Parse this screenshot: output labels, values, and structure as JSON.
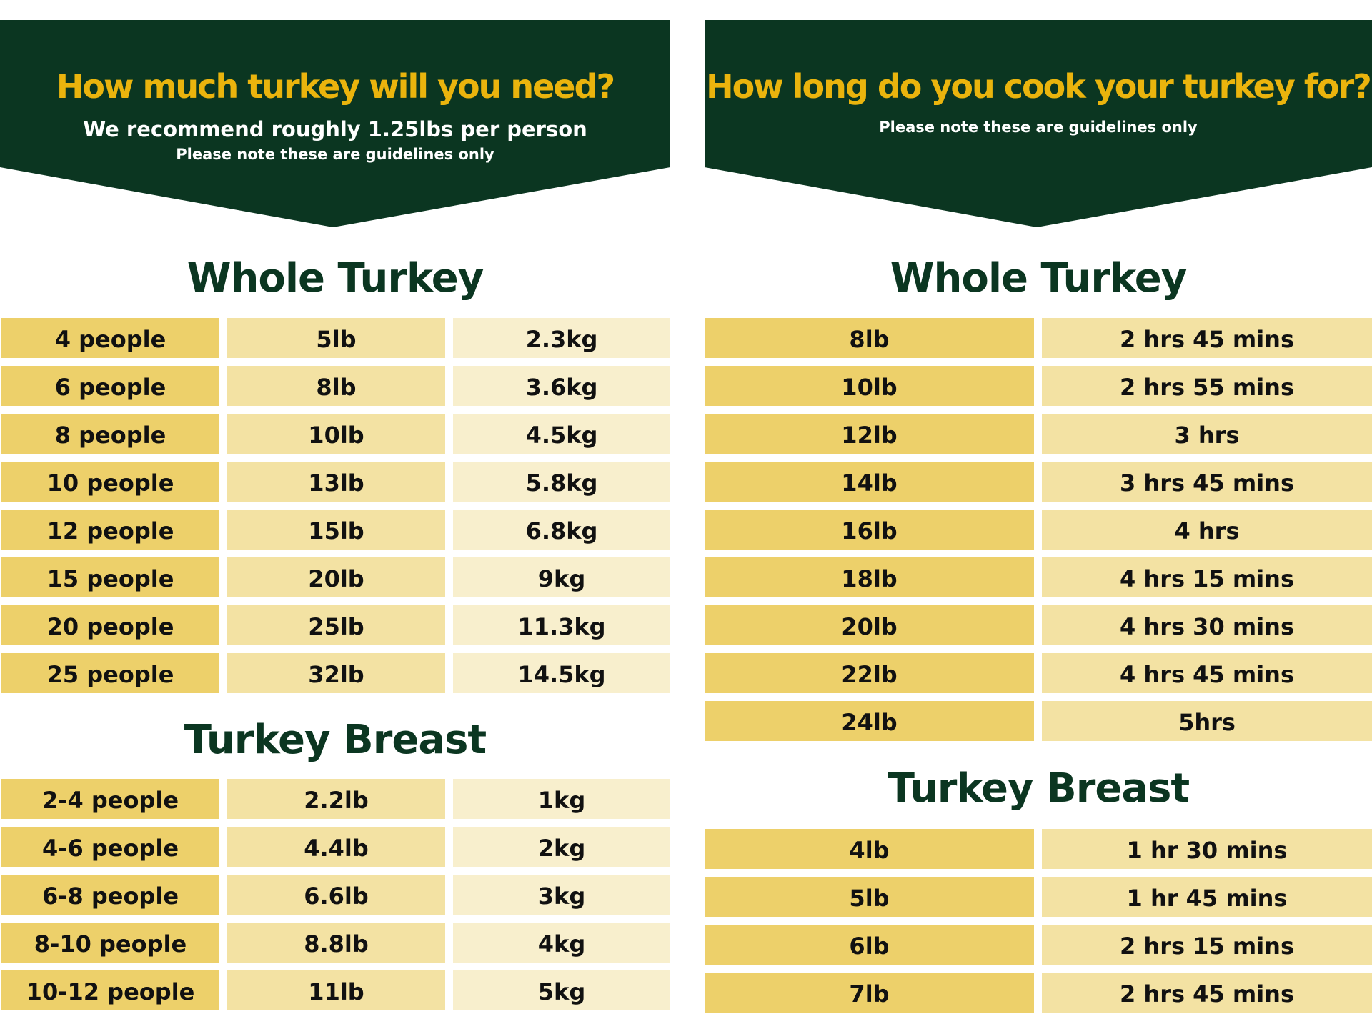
{
  "left": {
    "banner": {
      "title": "How much turkey will you need?",
      "subtitle": "We recommend roughly 1.25lbs per person",
      "note": "Please note these are guidelines only"
    },
    "whole": {
      "title": "Whole Turkey",
      "rows": [
        {
          "people": "4 people",
          "lb": "5lb",
          "kg": "2.3kg"
        },
        {
          "people": "6 people",
          "lb": "8lb",
          "kg": "3.6kg"
        },
        {
          "people": "8 people",
          "lb": "10lb",
          "kg": "4.5kg"
        },
        {
          "people": "10 people",
          "lb": "13lb",
          "kg": "5.8kg"
        },
        {
          "people": "12 people",
          "lb": "15lb",
          "kg": "6.8kg"
        },
        {
          "people": "15 people",
          "lb": "20lb",
          "kg": "9kg"
        },
        {
          "people": "20 people",
          "lb": "25lb",
          "kg": "11.3kg"
        },
        {
          "people": "25 people",
          "lb": "32lb",
          "kg": "14.5kg"
        }
      ]
    },
    "breast": {
      "title": "Turkey Breast",
      "rows": [
        {
          "people": "2-4 people",
          "lb": "2.2lb",
          "kg": "1kg"
        },
        {
          "people": "4-6 people",
          "lb": "4.4lb",
          "kg": "2kg"
        },
        {
          "people": "6-8 people",
          "lb": "6.6lb",
          "kg": "3kg"
        },
        {
          "people": "8-10 people",
          "lb": "8.8lb",
          "kg": "4kg"
        },
        {
          "people": "10-12 people",
          "lb": "11lb",
          "kg": "5kg"
        }
      ]
    }
  },
  "right": {
    "banner": {
      "title": "How long do you cook your turkey for?",
      "note": "Please note these are guidelines only"
    },
    "whole": {
      "title": "Whole Turkey",
      "rows": [
        {
          "weight": "8lb",
          "time": "2 hrs 45 mins"
        },
        {
          "weight": "10lb",
          "time": "2 hrs 55 mins"
        },
        {
          "weight": "12lb",
          "time": "3 hrs"
        },
        {
          "weight": "14lb",
          "time": "3 hrs 45 mins"
        },
        {
          "weight": "16lb",
          "time": "4 hrs"
        },
        {
          "weight": "18lb",
          "time": "4 hrs 15 mins"
        },
        {
          "weight": "20lb",
          "time": "4 hrs 30 mins"
        },
        {
          "weight": "22lb",
          "time": "4 hrs 45 mins"
        },
        {
          "weight": "24lb",
          "time": "5hrs"
        }
      ]
    },
    "breast": {
      "title": "Turkey Breast",
      "rows": [
        {
          "weight": "4lb",
          "time": "1 hr 30 mins"
        },
        {
          "weight": "5lb",
          "time": "1 hr 45 mins"
        },
        {
          "weight": "6lb",
          "time": "2 hrs 15 mins"
        },
        {
          "weight": "7lb",
          "time": "2 hrs 45 mins"
        }
      ]
    }
  },
  "colors": {
    "banner_bg": "#0b3621",
    "title_gold": "#eab40d",
    "heading_green": "#0b3621",
    "cell_dark": "#edd06a",
    "cell_mid": "#f3e2a3",
    "cell_light": "#f8efcd"
  }
}
